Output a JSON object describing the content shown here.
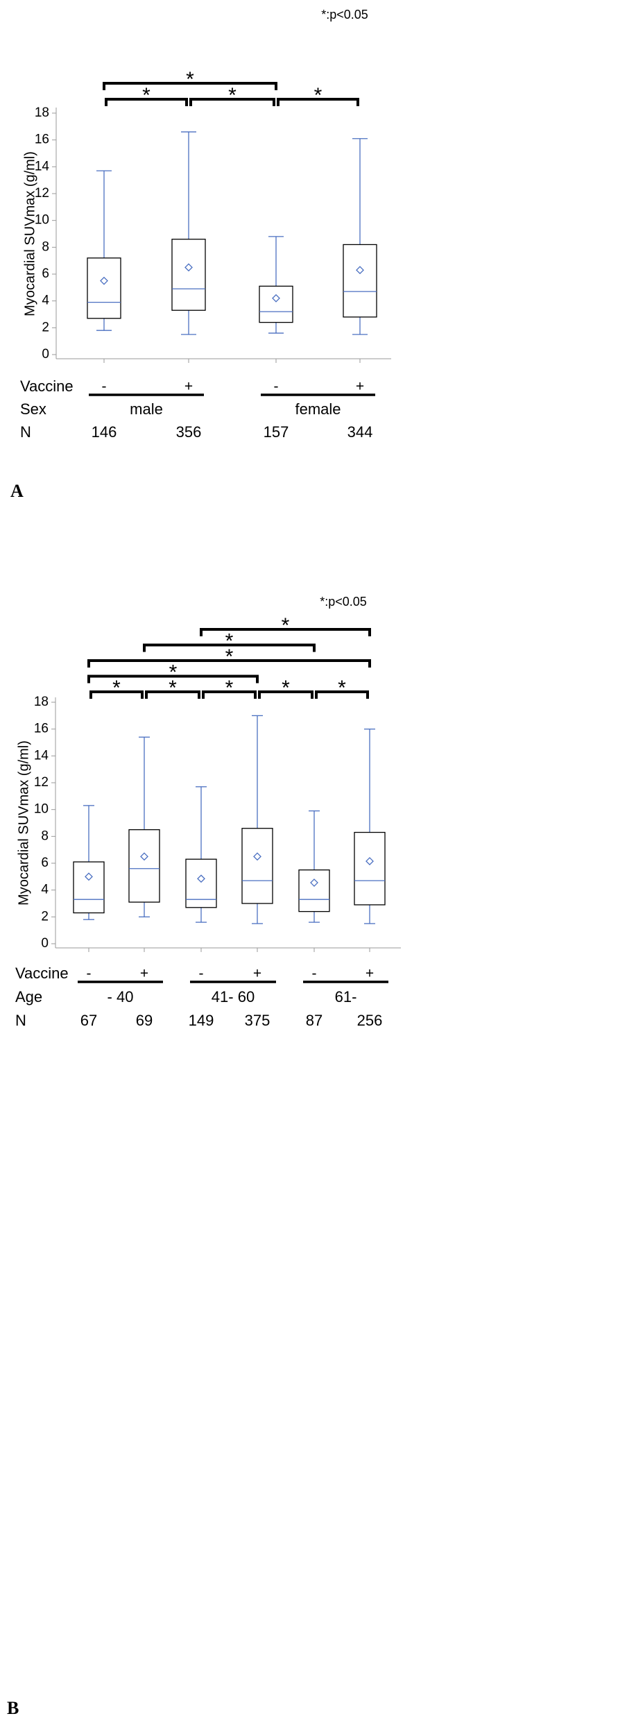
{
  "chart_data": [
    {
      "panel": "A",
      "type": "box",
      "ylabel": "Myocardial SUVmax (g/ml)",
      "ylim": [
        0,
        18
      ],
      "yticks": [
        0,
        2,
        4,
        6,
        8,
        10,
        12,
        14,
        16,
        18
      ],
      "note": "*:p<0.05",
      "row_labels": {
        "vaccine": "Vaccine",
        "group": "Sex",
        "n": "N"
      },
      "groups": [
        {
          "label": "male",
          "boxes": [
            0,
            1
          ]
        },
        {
          "label": "female",
          "boxes": [
            2,
            3
          ]
        }
      ],
      "boxes": [
        {
          "vaccine": "-",
          "n": "146",
          "min": 1.8,
          "q1": 2.7,
          "median": 3.9,
          "q3": 7.2,
          "max": 13.7,
          "mean": 5.5
        },
        {
          "vaccine": "+",
          "n": "356",
          "min": 1.5,
          "q1": 3.3,
          "median": 4.9,
          "q3": 8.6,
          "max": 16.6,
          "mean": 6.5
        },
        {
          "vaccine": "-",
          "n": "157",
          "min": 1.6,
          "q1": 2.4,
          "median": 3.2,
          "q3": 5.1,
          "max": 8.8,
          "mean": 4.2
        },
        {
          "vaccine": "+",
          "n": "344",
          "min": 1.5,
          "q1": 2.8,
          "median": 4.7,
          "q3": 8.2,
          "max": 16.1,
          "mean": 6.3
        }
      ],
      "significance": [
        {
          "from": 0,
          "to": 2,
          "level": 1,
          "mark": "*"
        },
        {
          "from": 0,
          "to": 1,
          "level": 0,
          "mark": "*"
        },
        {
          "from": 1,
          "to": 2,
          "level": 0,
          "mark": "*"
        },
        {
          "from": 2,
          "to": 3,
          "level": 0,
          "mark": "*"
        }
      ]
    },
    {
      "panel": "B",
      "type": "box",
      "ylabel": "Myocardial SUVmax (g/ml)",
      "ylim": [
        0,
        18
      ],
      "yticks": [
        0,
        2,
        4,
        6,
        8,
        10,
        12,
        14,
        16,
        18
      ],
      "note": "*:p<0.05",
      "row_labels": {
        "vaccine": "Vaccine",
        "group": "Age",
        "n": "N"
      },
      "groups": [
        {
          "label": "- 40",
          "boxes": [
            0,
            1
          ]
        },
        {
          "label": "41- 60",
          "boxes": [
            2,
            3
          ]
        },
        {
          "label": "61-",
          "boxes": [
            4,
            5
          ]
        }
      ],
      "boxes": [
        {
          "vaccine": "-",
          "n": "67",
          "min": 1.8,
          "q1": 2.3,
          "median": 3.3,
          "q3": 6.1,
          "max": 10.3,
          "mean": 5.0
        },
        {
          "vaccine": "+",
          "n": "69",
          "min": 2.0,
          "q1": 3.1,
          "median": 5.6,
          "q3": 8.5,
          "max": 15.4,
          "mean": 6.5
        },
        {
          "vaccine": "-",
          "n": "149",
          "min": 1.6,
          "q1": 2.7,
          "median": 3.3,
          "q3": 6.3,
          "max": 11.7,
          "mean": 4.85
        },
        {
          "vaccine": "+",
          "n": "375",
          "min": 1.5,
          "q1": 3.0,
          "median": 4.7,
          "q3": 8.6,
          "max": 17.0,
          "mean": 6.5
        },
        {
          "vaccine": "-",
          "n": "87",
          "min": 1.6,
          "q1": 2.4,
          "median": 3.3,
          "q3": 5.5,
          "max": 9.9,
          "mean": 4.55
        },
        {
          "vaccine": "+",
          "n": "256",
          "min": 1.5,
          "q1": 2.9,
          "median": 4.7,
          "q3": 8.3,
          "max": 16.0,
          "mean": 6.15
        }
      ],
      "significance": [
        {
          "from": 2,
          "to": 5,
          "level": 4,
          "mark": "*"
        },
        {
          "from": 1,
          "to": 4,
          "level": 3,
          "mark": "*"
        },
        {
          "from": 0,
          "to": 5,
          "level": 2,
          "mark": "*"
        },
        {
          "from": 0,
          "to": 3,
          "level": 1,
          "mark": "*"
        },
        {
          "from": 0,
          "to": 1,
          "level": 0,
          "mark": "*"
        },
        {
          "from": 1,
          "to": 2,
          "level": 0,
          "mark": "*"
        },
        {
          "from": 2,
          "to": 3,
          "level": 0,
          "mark": "*"
        },
        {
          "from": 3,
          "to": 4,
          "level": 0,
          "mark": "*"
        },
        {
          "from": 4,
          "to": 5,
          "level": 0,
          "mark": "*"
        }
      ]
    }
  ],
  "colors": {
    "box_detail": "#4a6fc1",
    "box_border": "#000000",
    "axis": "#9a9a9a"
  }
}
